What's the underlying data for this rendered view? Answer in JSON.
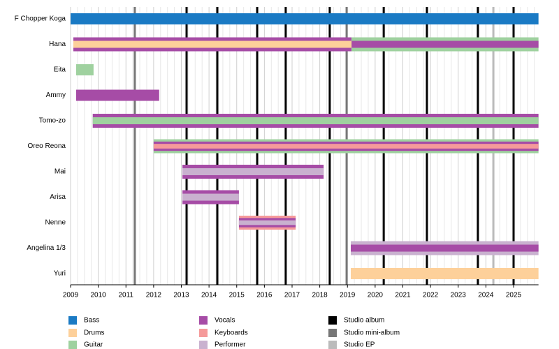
{
  "chart_data": {
    "type": "timeline",
    "categories": [
      "F Chopper Koga",
      "Hana",
      "Eita",
      "Ammy",
      "Tomo-zo",
      "Oreo Reona",
      "Mai",
      "Arisa",
      "Nenne",
      "Angelina 1/3",
      "Yuri"
    ],
    "xlim": [
      2009,
      2025.9
    ],
    "xticks": [
      2009,
      2010,
      2011,
      2012,
      2013,
      2014,
      2015,
      2016,
      2017,
      2018,
      2019,
      2020,
      2021,
      2022,
      2023,
      2024,
      2025
    ],
    "grid": true,
    "roles": [
      {
        "name": "Bass",
        "color": "#1a7ac4"
      },
      {
        "name": "Drums",
        "color": "#fdd09a"
      },
      {
        "name": "Guitar",
        "color": "#9fd19f"
      },
      {
        "name": "Vocals",
        "color": "#a64ca6"
      },
      {
        "name": "Keyboards",
        "color": "#f59a9a"
      },
      {
        "name": "Performer",
        "color": "#c9b1cf"
      }
    ],
    "release_types": [
      {
        "name": "Studio album",
        "color": "#000000",
        "x": [
          2013.19,
          2014.3,
          2015.74,
          2016.77,
          2018.36,
          2020.31,
          2021.87,
          2023.71,
          2025.0
        ]
      },
      {
        "name": "Studio mini-album",
        "color": "#777777",
        "x": [
          2011.32,
          2018.97
        ]
      },
      {
        "name": "Studio EP",
        "color": "#bbbbbb",
        "x": [
          2024.27
        ]
      }
    ],
    "members": [
      {
        "periods": [
          {
            "start": 2009.0,
            "end": 2025.9,
            "roles": [
              "Bass"
            ]
          }
        ]
      },
      {
        "periods": [
          {
            "start": 2009.1,
            "end": 2019.15,
            "roles": [
              "Vocals",
              "Drums"
            ]
          },
          {
            "start": 2019.15,
            "end": 2025.9,
            "roles": [
              "Guitar",
              "Vocals"
            ]
          }
        ]
      },
      {
        "periods": [
          {
            "start": 2009.2,
            "end": 2009.83,
            "roles": [
              "Guitar"
            ]
          }
        ]
      },
      {
        "periods": [
          {
            "start": 2009.2,
            "end": 2012.2,
            "roles": [
              "Vocals"
            ]
          }
        ]
      },
      {
        "periods": [
          {
            "start": 2009.8,
            "end": 2025.9,
            "roles": [
              "Vocals",
              "Guitar"
            ]
          }
        ]
      },
      {
        "periods": [
          {
            "start": 2012.0,
            "end": 2025.9,
            "roles": [
              "Guitar",
              "Vocals",
              "Keyboards"
            ]
          }
        ]
      },
      {
        "periods": [
          {
            "start": 2013.04,
            "end": 2018.14,
            "roles": [
              "Vocals",
              "Performer"
            ]
          }
        ]
      },
      {
        "periods": [
          {
            "start": 2013.04,
            "end": 2015.08,
            "roles": [
              "Vocals",
              "Performer"
            ]
          }
        ]
      },
      {
        "periods": [
          {
            "start": 2015.08,
            "end": 2017.13,
            "roles": [
              "Keyboards",
              "Vocals",
              "Performer"
            ]
          }
        ]
      },
      {
        "periods": [
          {
            "start": 2019.12,
            "end": 2025.9,
            "roles": [
              "Performer",
              "Vocals"
            ]
          }
        ]
      },
      {
        "periods": [
          {
            "start": 2019.12,
            "end": 2025.9,
            "roles": [
              "Drums"
            ]
          }
        ]
      }
    ]
  }
}
